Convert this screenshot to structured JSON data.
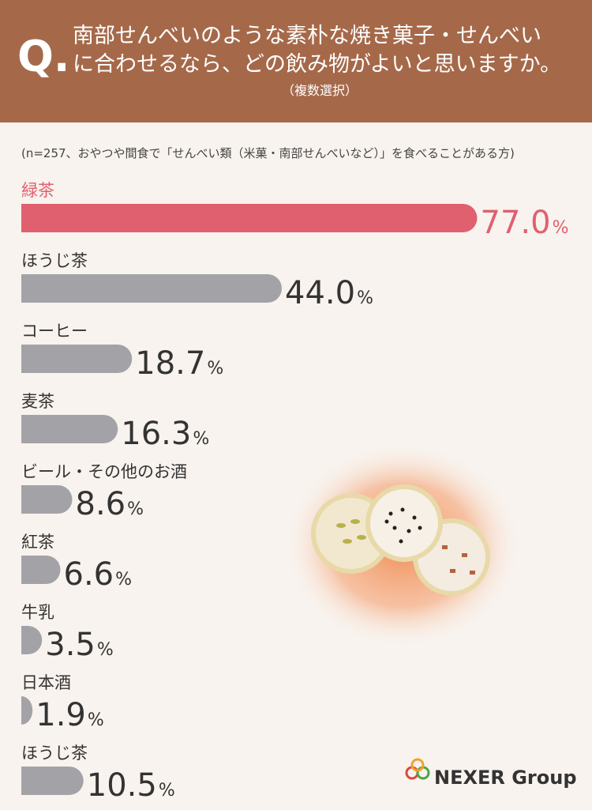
{
  "chart_data": {
    "type": "bar",
    "orientation": "horizontal",
    "question_mark": "Q.",
    "title_lines": [
      "南部せんべいのような素朴な焼き菓子・せんべい",
      "に合わせるなら、どの飲み物がよいと思いますか。"
    ],
    "subtitle": "（複数選択）",
    "note": "(n=257、おやつや間食で「せんべい類（米菓・南部せんべいなど）」を食べることがある方)",
    "categories": [
      "緑茶",
      "ほうじ茶",
      "コーヒー",
      "麦茶",
      "ビール・その他のお酒",
      "紅茶",
      "牛乳",
      "日本酒",
      "ほうじ茶"
    ],
    "values": [
      77,
      44,
      18.7,
      16.3,
      8.6,
      6.6,
      3.5,
      1.9,
      10.5
    ],
    "value_labels": [
      "77.0",
      "44.0",
      "18.7",
      "16.3",
      "8.6",
      "6.6",
      "3.5",
      "1.9",
      "10.5"
    ],
    "unit": "%",
    "colors": [
      "#e0606f",
      "#a3a3a7",
      "#a3a3a7",
      "#a3a3a7",
      "#a3a3a7",
      "#a3a3a7",
      "#a3a3a7",
      "#a3a3a7",
      "#a3a3a7"
    ],
    "xlim": [
      0,
      80
    ]
  },
  "brand": "NEXER Group"
}
